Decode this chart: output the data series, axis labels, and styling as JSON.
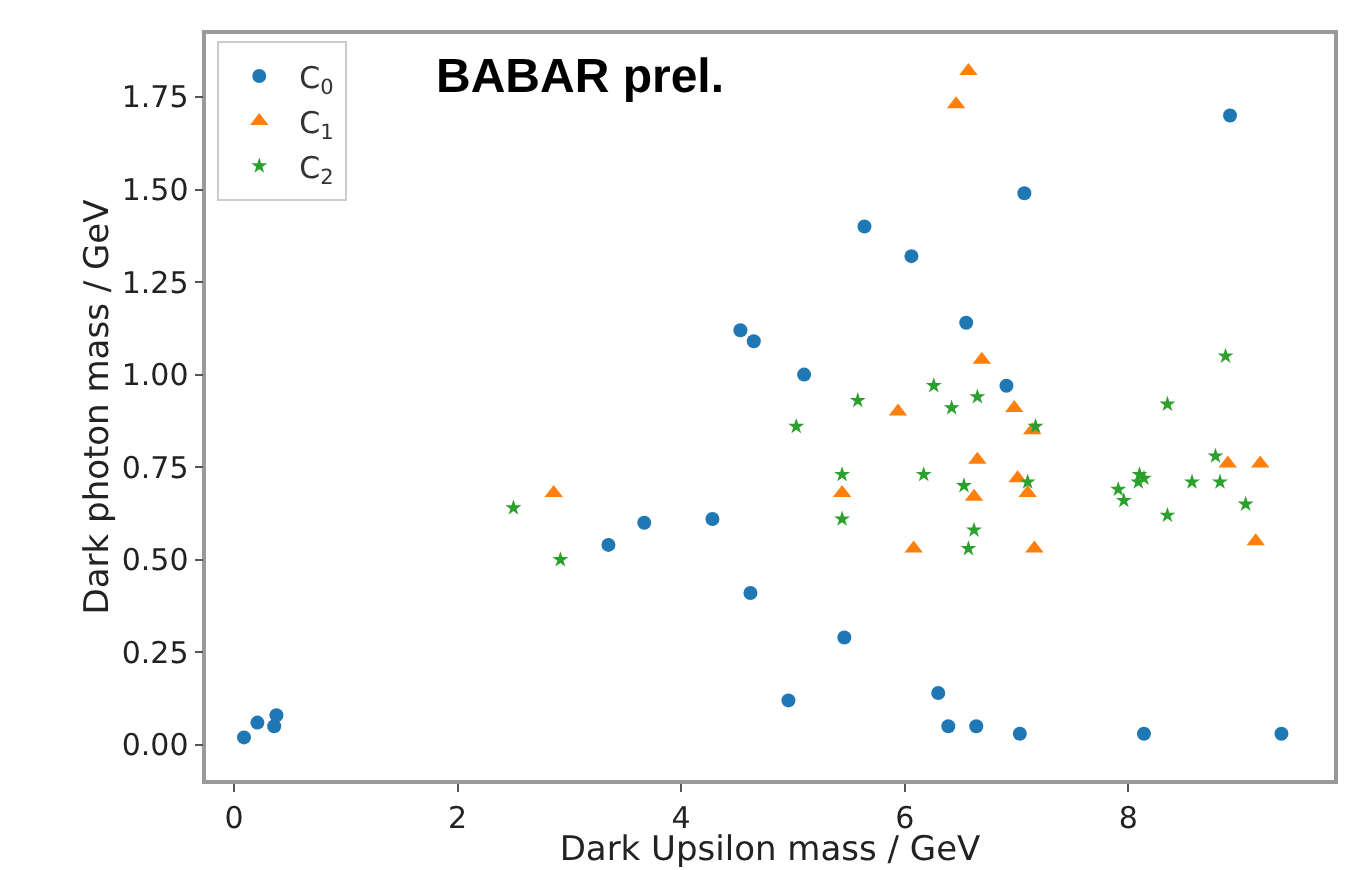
{
  "chart_data": {
    "type": "scatter",
    "xlabel": "Dark Upsilon mass / GeV",
    "ylabel": "Dark photon mass / GeV",
    "annotations": [
      "BABAR prel."
    ],
    "xlim": [
      -0.25,
      9.84
    ],
    "ylim": [
      -0.095,
      1.92
    ],
    "xticks": [
      0,
      2,
      4,
      6,
      8
    ],
    "yticks": [
      {
        "value": 0,
        "label": "0.00"
      },
      {
        "value": 0.25,
        "label": "0.25"
      },
      {
        "value": 0.5,
        "label": "0.50"
      },
      {
        "value": 0.75,
        "label": "0.75"
      },
      {
        "value": 1,
        "label": "1.00"
      },
      {
        "value": 1.25,
        "label": "1.25"
      },
      {
        "value": 1.5,
        "label": "1.50"
      },
      {
        "value": 1.75,
        "label": "1.75"
      }
    ],
    "grid": false,
    "legend": "top left",
    "series": [
      {
        "name": "C$_{0}$",
        "color": "#1f77b4",
        "marker": "circle",
        "x": [
          0.09,
          0.21,
          0.36,
          0.38,
          3.35,
          3.67,
          4.28,
          4.53,
          4.65,
          4.62,
          5.1,
          5.46,
          4.96,
          6.3,
          6.39,
          6.64,
          7.03,
          8.14,
          9.37,
          5.64,
          6.06,
          7.07,
          8.91,
          6.55,
          6.91
        ],
        "values": [
          0.02,
          0.06,
          0.05,
          0.08,
          0.54,
          0.6,
          0.61,
          1.12,
          1.09,
          0.41,
          1.0,
          0.29,
          0.12,
          0.14,
          0.05,
          0.05,
          0.03,
          0.03,
          0.03,
          1.4,
          1.32,
          1.49,
          1.7,
          1.14,
          0.97
        ]
      },
      {
        "name": "C$_{1}$",
        "color": "#ff7f0e",
        "marker": "triangle",
        "x": [
          6.57,
          6.46,
          6.69,
          6.98,
          5.94,
          2.86,
          7.14,
          6.65,
          7.01,
          6.62,
          7.1,
          5.44,
          6.08,
          7.16,
          8.89,
          9.18,
          9.14
        ],
        "values": [
          1.82,
          1.73,
          1.04,
          0.91,
          0.9,
          0.68,
          0.85,
          0.77,
          0.72,
          0.67,
          0.68,
          0.68,
          0.53,
          0.53,
          0.76,
          0.76,
          0.55
        ]
      },
      {
        "name": "C$_{2}$",
        "color": "#2ca02c",
        "marker": "star",
        "x": [
          2.5,
          2.92,
          5.58,
          6.26,
          6.42,
          6.65,
          8.35,
          8.87,
          5.03,
          7.17,
          5.44,
          6.17,
          6.53,
          7.1,
          5.44,
          6.62,
          6.57,
          7.91,
          7.96,
          8.1,
          8.09,
          8.14,
          8.35,
          8.57,
          8.78,
          8.82,
          9.05
        ],
        "values": [
          0.64,
          0.5,
          0.93,
          0.97,
          0.91,
          0.94,
          0.92,
          1.05,
          0.86,
          0.86,
          0.73,
          0.73,
          0.7,
          0.71,
          0.61,
          0.58,
          0.53,
          0.69,
          0.66,
          0.73,
          0.71,
          0.72,
          0.62,
          0.71,
          0.78,
          0.71,
          0.65
        ]
      }
    ]
  }
}
